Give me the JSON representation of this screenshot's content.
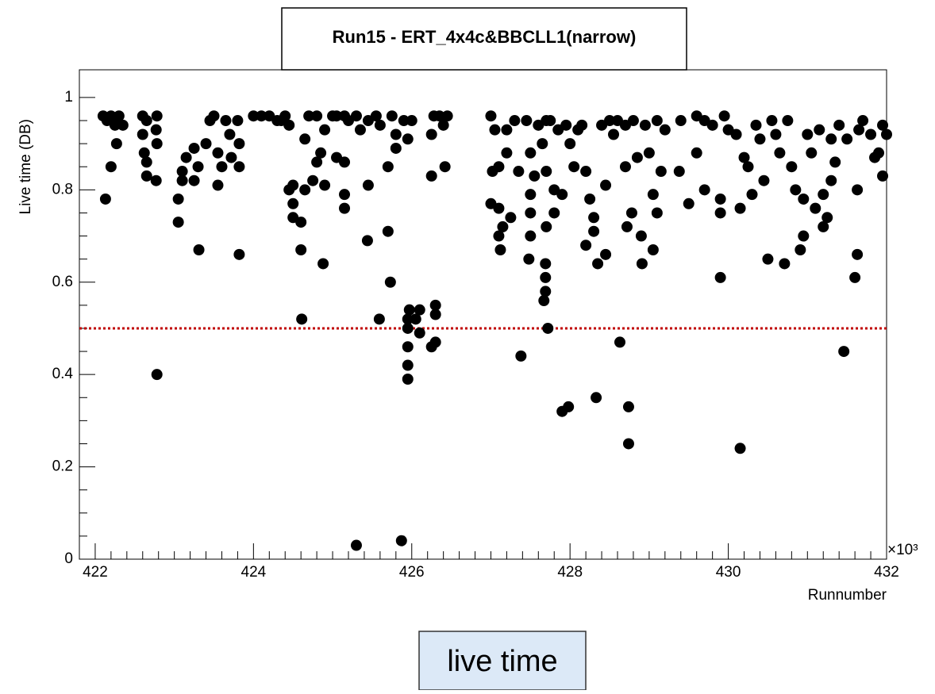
{
  "chart_data": {
    "type": "scatter",
    "title": "Run15 - ERT_4x4c&BBCLL1(narrow)",
    "x_label": "Runnumber",
    "y_label": "Live time (DB)",
    "x_multiplier": "×10³",
    "caption": "live time",
    "color": "#000000",
    "reference_line": 0.5,
    "reference_color": "#c00000",
    "xlim": [
      421.8,
      432
    ],
    "ylim": [
      0,
      1.06
    ],
    "xticks": [
      422,
      424,
      426,
      428,
      430,
      432
    ],
    "yticks": [
      0,
      0.2,
      0.4,
      0.6,
      0.8,
      1
    ],
    "x": [
      422.1,
      422.15,
      422.2,
      422.25,
      422.3,
      422.35,
      422.13,
      422.2,
      422.27,
      422.6,
      422.65,
      422.6,
      422.62,
      422.65,
      422.65,
      422.78,
      422.77,
      422.78,
      422.77,
      422.78,
      423.05,
      423.05,
      423.1,
      423.1,
      423.15,
      423.25,
      423.25,
      423.31,
      423.3,
      423.4,
      423.45,
      423.5,
      423.55,
      423.55,
      423.6,
      423.65,
      423.7,
      423.72,
      423.8,
      423.82,
      423.82,
      423.82,
      424.0,
      424.1,
      424.2,
      424.3,
      424.35,
      424.4,
      424.45,
      424.45,
      424.5,
      424.5,
      424.5,
      424.6,
      424.6,
      424.61,
      424.65,
      424.65,
      424.7,
      424.8,
      424.75,
      424.8,
      424.85,
      424.88,
      424.9,
      424.9,
      425.0,
      425.05,
      425.05,
      425.15,
      425.15,
      425.15,
      425.15,
      425.2,
      425.3,
      425.3,
      425.35,
      425.44,
      425.45,
      425.45,
      425.55,
      425.59,
      425.6,
      425.7,
      425.7,
      425.73,
      425.75,
      425.8,
      425.8,
      425.87,
      425.9,
      425.95,
      425.95,
      425.95,
      425.95,
      425.95,
      425.95,
      425.97,
      426.0,
      426.05,
      426.1,
      426.1,
      426.25,
      426.25,
      426.25,
      426.28,
      426.3,
      426.3,
      426.3,
      426.35,
      426.4,
      426.42,
      426.45,
      427.0,
      427.02,
      427.0,
      427.05,
      427.1,
      427.1,
      427.1,
      427.12,
      427.15,
      427.2,
      427.2,
      427.25,
      427.3,
      427.35,
      427.38,
      427.45,
      427.5,
      427.5,
      427.5,
      427.5,
      427.48,
      427.55,
      427.6,
      427.65,
      427.7,
      427.7,
      427.7,
      427.69,
      427.69,
      427.69,
      427.67,
      427.72,
      427.75,
      427.8,
      427.8,
      427.85,
      427.9,
      427.9,
      427.95,
      427.98,
      428.0,
      428.05,
      428.1,
      428.15,
      428.2,
      428.2,
      428.25,
      428.3,
      428.3,
      428.33,
      428.35,
      428.4,
      428.45,
      428.45,
      428.5,
      428.55,
      428.6,
      428.63,
      428.7,
      428.7,
      428.72,
      428.74,
      428.74,
      428.78,
      428.8,
      428.85,
      428.91,
      428.9,
      428.95,
      429.0,
      429.05,
      429.05,
      429.1,
      429.1,
      429.15,
      429.2,
      429.38,
      429.4,
      429.5,
      429.6,
      429.6,
      429.7,
      429.7,
      429.8,
      429.9,
      429.9,
      429.95,
      429.9,
      430.0,
      430.1,
      430.15,
      430.15,
      430.2,
      430.25,
      430.3,
      430.35,
      430.4,
      430.45,
      430.5,
      430.55,
      430.6,
      430.65,
      430.71,
      430.75,
      430.8,
      430.85,
      430.91,
      430.95,
      430.95,
      431.0,
      431.05,
      431.1,
      431.15,
      431.2,
      431.2,
      431.25,
      431.3,
      431.3,
      431.35,
      431.4,
      431.46,
      431.5,
      431.6,
      431.63,
      431.63,
      431.65,
      431.7,
      431.8,
      431.9,
      431.95,
      432.0,
      431.95,
      431.85
    ],
    "y": [
      0.96,
      0.95,
      0.96,
      0.94,
      0.96,
      0.94,
      0.78,
      0.85,
      0.9,
      0.96,
      0.95,
      0.92,
      0.88,
      0.83,
      0.86,
      0.96,
      0.93,
      0.9,
      0.82,
      0.4,
      0.78,
      0.73,
      0.84,
      0.82,
      0.87,
      0.89,
      0.82,
      0.67,
      0.85,
      0.9,
      0.95,
      0.96,
      0.88,
      0.81,
      0.85,
      0.95,
      0.92,
      0.87,
      0.95,
      0.66,
      0.85,
      0.9,
      0.96,
      0.96,
      0.96,
      0.95,
      0.95,
      0.96,
      0.94,
      0.8,
      0.81,
      0.77,
      0.74,
      0.73,
      0.67,
      0.52,
      0.8,
      0.91,
      0.96,
      0.96,
      0.82,
      0.86,
      0.88,
      0.64,
      0.93,
      0.81,
      0.96,
      0.96,
      0.87,
      0.96,
      0.86,
      0.76,
      0.79,
      0.95,
      0.96,
      0.03,
      0.93,
      0.69,
      0.81,
      0.95,
      0.96,
      0.52,
      0.94,
      0.71,
      0.85,
      0.6,
      0.96,
      0.92,
      0.89,
      0.04,
      0.95,
      0.91,
      0.39,
      0.42,
      0.46,
      0.5,
      0.52,
      0.54,
      0.95,
      0.52,
      0.49,
      0.54,
      0.46,
      0.83,
      0.92,
      0.96,
      0.47,
      0.55,
      0.53,
      0.96,
      0.94,
      0.85,
      0.96,
      0.96,
      0.84,
      0.77,
      0.93,
      0.85,
      0.76,
      0.7,
      0.67,
      0.72,
      0.93,
      0.88,
      0.74,
      0.95,
      0.84,
      0.44,
      0.95,
      0.88,
      0.79,
      0.75,
      0.7,
      0.65,
      0.83,
      0.94,
      0.9,
      0.95,
      0.84,
      0.72,
      0.64,
      0.61,
      0.58,
      0.56,
      0.5,
      0.95,
      0.8,
      0.75,
      0.93,
      0.32,
      0.79,
      0.94,
      0.33,
      0.9,
      0.85,
      0.93,
      0.94,
      0.84,
      0.68,
      0.78,
      0.71,
      0.74,
      0.35,
      0.64,
      0.94,
      0.66,
      0.81,
      0.95,
      0.92,
      0.95,
      0.47,
      0.94,
      0.85,
      0.72,
      0.25,
      0.33,
      0.75,
      0.95,
      0.87,
      0.64,
      0.7,
      0.94,
      0.88,
      0.67,
      0.79,
      0.95,
      0.75,
      0.84,
      0.93,
      0.84,
      0.95,
      0.77,
      0.96,
      0.88,
      0.95,
      0.8,
      0.94,
      0.61,
      0.78,
      0.96,
      0.75,
      0.93,
      0.92,
      0.24,
      0.76,
      0.87,
      0.85,
      0.79,
      0.94,
      0.91,
      0.82,
      0.65,
      0.95,
      0.92,
      0.88,
      0.64,
      0.95,
      0.85,
      0.8,
      0.67,
      0.7,
      0.78,
      0.92,
      0.88,
      0.76,
      0.93,
      0.79,
      0.72,
      0.74,
      0.91,
      0.82,
      0.86,
      0.94,
      0.45,
      0.91,
      0.61,
      0.66,
      0.8,
      0.93,
      0.95,
      0.92,
      0.88,
      0.94,
      0.92,
      0.83,
      0.87
    ]
  }
}
